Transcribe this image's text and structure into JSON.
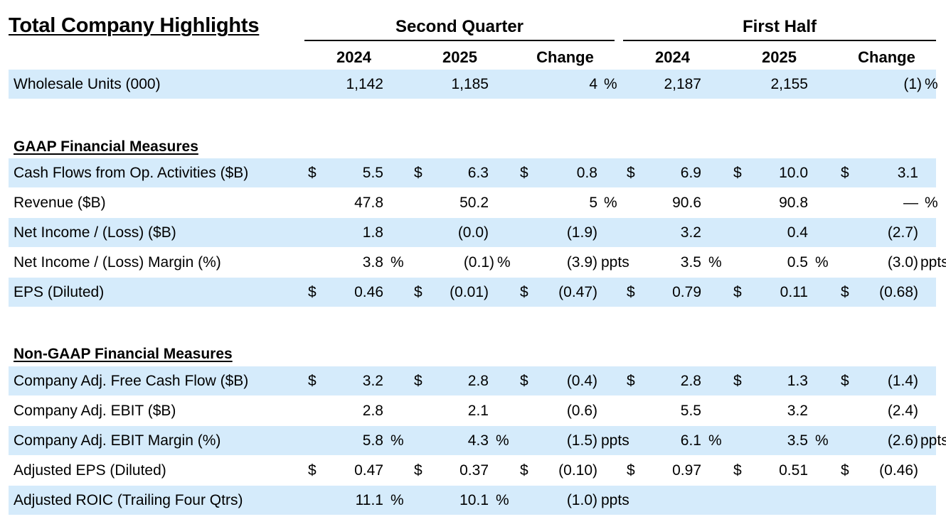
{
  "title": "Total Company Highlights",
  "column_groups": [
    "Second Quarter",
    "First Half"
  ],
  "years": [
    "2024",
    "2025",
    "Change",
    "2024",
    "2025",
    "Change"
  ],
  "sections": {
    "gaap": "GAAP Financial Measures",
    "non_gaap": "Non-GAAP Financial Measures"
  },
  "rows": [
    {
      "label": "Wholesale Units (000)",
      "cells": [
        [
          "",
          "1,142",
          ""
        ],
        [
          "",
          "1,185",
          ""
        ],
        [
          "",
          "4",
          "%"
        ],
        [
          "",
          "2,187",
          ""
        ],
        [
          "",
          "2,155",
          ""
        ],
        [
          "",
          "(1)",
          "%"
        ]
      ]
    },
    {
      "label": "Cash Flows from Op. Activities ($B)",
      "cells": [
        [
          "$",
          "5.5",
          ""
        ],
        [
          "$",
          "6.3",
          ""
        ],
        [
          "$",
          "0.8",
          ""
        ],
        [
          "$",
          "6.9",
          ""
        ],
        [
          "$",
          "10.0",
          ""
        ],
        [
          "$",
          "3.1",
          ""
        ]
      ]
    },
    {
      "label": "Revenue ($B)",
      "cells": [
        [
          "",
          "47.8",
          ""
        ],
        [
          "",
          "50.2",
          ""
        ],
        [
          "",
          "5",
          "%"
        ],
        [
          "",
          "90.6",
          ""
        ],
        [
          "",
          "90.8",
          ""
        ],
        [
          "",
          "—",
          "%"
        ]
      ]
    },
    {
      "label": "Net Income / (Loss) ($B)",
      "cells": [
        [
          "",
          "1.8",
          ""
        ],
        [
          "",
          "(0.0)",
          ""
        ],
        [
          "",
          "(1.9)",
          ""
        ],
        [
          "",
          "3.2",
          ""
        ],
        [
          "",
          "0.4",
          ""
        ],
        [
          "",
          "(2.7)",
          ""
        ]
      ]
    },
    {
      "label": "Net Income / (Loss) Margin (%)",
      "cells": [
        [
          "",
          "3.8",
          "%"
        ],
        [
          "",
          "(0.1)",
          "%"
        ],
        [
          "",
          "(3.9)",
          "ppts"
        ],
        [
          "",
          "3.5",
          "%"
        ],
        [
          "",
          "0.5",
          "%"
        ],
        [
          "",
          "(3.0)",
          "ppts"
        ]
      ]
    },
    {
      "label": "EPS (Diluted)",
      "cells": [
        [
          "$",
          "0.46",
          ""
        ],
        [
          "$",
          "(0.01)",
          ""
        ],
        [
          "$",
          "(0.47)",
          ""
        ],
        [
          "$",
          "0.79",
          ""
        ],
        [
          "$",
          "0.11",
          ""
        ],
        [
          "$",
          "(0.68)",
          ""
        ]
      ]
    },
    {
      "label": "Company Adj. Free Cash Flow ($B)",
      "cells": [
        [
          "$",
          "3.2",
          ""
        ],
        [
          "$",
          "2.8",
          ""
        ],
        [
          "$",
          "(0.4)",
          ""
        ],
        [
          "$",
          "2.8",
          ""
        ],
        [
          "$",
          "1.3",
          ""
        ],
        [
          "$",
          "(1.4)",
          ""
        ]
      ]
    },
    {
      "label": "Company Adj. EBIT ($B)",
      "cells": [
        [
          "",
          "2.8",
          ""
        ],
        [
          "",
          "2.1",
          ""
        ],
        [
          "",
          "(0.6)",
          ""
        ],
        [
          "",
          "5.5",
          ""
        ],
        [
          "",
          "3.2",
          ""
        ],
        [
          "",
          "(2.4)",
          ""
        ]
      ]
    },
    {
      "label": "Company Adj. EBIT Margin (%)",
      "cells": [
        [
          "",
          "5.8",
          "%"
        ],
        [
          "",
          "4.3",
          "%"
        ],
        [
          "",
          "(1.5)",
          "ppts"
        ],
        [
          "",
          "6.1",
          "%"
        ],
        [
          "",
          "3.5",
          "%"
        ],
        [
          "",
          "(2.6)",
          "ppts"
        ]
      ]
    },
    {
      "label": "Adjusted EPS (Diluted)",
      "cells": [
        [
          "$",
          "0.47",
          ""
        ],
        [
          "$",
          "0.37",
          ""
        ],
        [
          "$",
          "(0.10)",
          ""
        ],
        [
          "$",
          "0.97",
          ""
        ],
        [
          "$",
          "0.51",
          ""
        ],
        [
          "$",
          "(0.46)",
          ""
        ]
      ]
    },
    {
      "label": "Adjusted ROIC (Trailing Four Qtrs)",
      "cells": [
        [
          "",
          "11.1",
          "%"
        ],
        [
          "",
          "10.1",
          "%"
        ],
        [
          "",
          "(1.0)",
          "ppts"
        ],
        [
          "",
          "",
          ""
        ],
        [
          "",
          "",
          ""
        ],
        [
          "",
          "",
          ""
        ]
      ]
    }
  ]
}
